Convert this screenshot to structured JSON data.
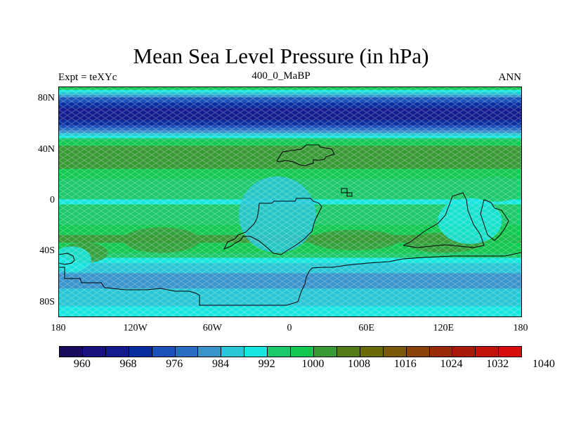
{
  "title": "Mean Sea Level Pressure (in hPa)",
  "left_label": "Expt = teXYc",
  "subtitle": "400_0_MaBP",
  "right_label": "ANN",
  "lat_ticks": [
    "80N",
    "40N",
    "0",
    "40S",
    "80S"
  ],
  "lat_values": [
    80,
    40,
    0,
    -40,
    -80
  ],
  "lon_ticks": [
    "180",
    "120W",
    "60W",
    "0",
    "60E",
    "120E",
    "180"
  ],
  "lon_values": [
    -180,
    -120,
    -60,
    0,
    60,
    120,
    180
  ],
  "colorbar": {
    "labels": [
      "960",
      "968",
      "976",
      "984",
      "992",
      "1000",
      "1008",
      "1016",
      "1024",
      "1032",
      "1040"
    ],
    "colors": [
      "#1a0a5e",
      "#18127a",
      "#121c8e",
      "#0a2ea0",
      "#1a52b8",
      "#2a6ec4",
      "#3a94cc",
      "#29c6d6",
      "#18e6e0",
      "#1cc86a",
      "#12c850",
      "#3a9a38",
      "#557a18",
      "#6a6a08",
      "#7a5a08",
      "#8a4208",
      "#992a08",
      "#a81a0a",
      "#c0140a",
      "#d80c0c"
    ]
  },
  "chart_data": {
    "type": "heatmap",
    "title": "Mean Sea Level Pressure (in hPa)",
    "variable_unit": "hPa",
    "x_range": [
      -180,
      180
    ],
    "y_range": [
      -90,
      90
    ],
    "zonal_mean_profile": [
      {
        "lat": 90,
        "value": 1003
      },
      {
        "lat": 80,
        "value": 975
      },
      {
        "lat": 70,
        "value": 966
      },
      {
        "lat": 60,
        "value": 972
      },
      {
        "lat": 50,
        "value": 998
      },
      {
        "lat": 40,
        "value": 1008
      },
      {
        "lat": 30,
        "value": 1007
      },
      {
        "lat": 20,
        "value": 1001
      },
      {
        "lat": 10,
        "value": 997
      },
      {
        "lat": 0,
        "value": 995
      },
      {
        "lat": -10,
        "value": 997
      },
      {
        "lat": -20,
        "value": 1001
      },
      {
        "lat": -30,
        "value": 1006
      },
      {
        "lat": -40,
        "value": 1000
      },
      {
        "lat": -50,
        "value": 990
      },
      {
        "lat": -60,
        "value": 984
      },
      {
        "lat": -70,
        "value": 988
      },
      {
        "lat": -80,
        "value": 990
      },
      {
        "lat": -90,
        "value": 994
      }
    ]
  }
}
